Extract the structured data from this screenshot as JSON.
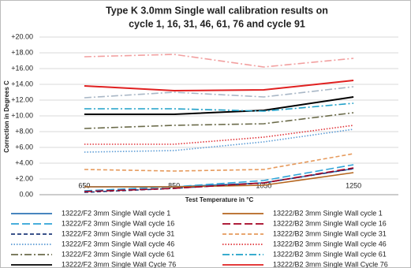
{
  "chart_data": {
    "type": "line",
    "title": [
      "Type K 3.0mm Single wall calibration results on",
      "cycle 1, 16, 31, 46, 61, 76 and cycle 91"
    ],
    "x_label": "Test Temperature in  °C",
    "y_label": "Correction in Degrees C",
    "categories": [
      "650",
      "850",
      "1050",
      "1250"
    ],
    "ylim": [
      0,
      20
    ],
    "yticks": [
      {
        "value": 0,
        "label": "0.00"
      },
      {
        "value": 2,
        "label": "+2.00"
      },
      {
        "value": 4,
        "label": "+4.00"
      },
      {
        "value": 6,
        "label": "+6.00"
      },
      {
        "value": 8,
        "label": "+8.00"
      },
      {
        "value": 10,
        "label": "+10.00"
      },
      {
        "value": 12,
        "label": "+12.00"
      },
      {
        "value": 14,
        "label": "+14.00"
      },
      {
        "value": 16,
        "label": "+16.00"
      },
      {
        "value": 18,
        "label": "+18.00"
      },
      {
        "value": 20,
        "label": "+20.00"
      }
    ],
    "grid": true,
    "series": [
      {
        "name": "13222/F2 3mm Single Wall cycle 1",
        "color": "#2e75b6",
        "dash": "solid",
        "values": [
          1.0,
          1.0,
          1.5,
          3.3
        ]
      },
      {
        "name": "13222/F2 3mm Single Wall cycle 16",
        "color": "#2fa4d8",
        "dash": "longdash",
        "values": [
          0.5,
          1.0,
          1.8,
          3.8
        ]
      },
      {
        "name": "13222/F2 3mm Single Wall cycle 31",
        "color": "#1f3a7a",
        "dash": "dashed",
        "values": [
          0.3,
          0.8,
          1.5,
          3.3
        ]
      },
      {
        "name": "13222/F2 3mm Single Wall cycle 46",
        "color": "#5b9bd5",
        "dash": "dotted",
        "values": [
          5.4,
          5.6,
          6.7,
          8.3
        ]
      },
      {
        "name": "13222/F2 3mm Single Wall cycle 61",
        "color": "#6b6b4a",
        "dash": "dashdot",
        "values": [
          8.4,
          8.8,
          9.0,
          10.4
        ]
      },
      {
        "name": "13222/F2 3mm Single Wall Cycle 76",
        "color": "#000000",
        "dash": "solid",
        "values": [
          10.2,
          10.2,
          10.7,
          12.4
        ]
      },
      {
        "name": "13222/B2 3mm Single Wall cycle 1",
        "color": "#b5651d",
        "dash": "solid",
        "values": [
          1.0,
          1.0,
          1.2,
          2.8
        ]
      },
      {
        "name": "13222/B2 3mm Single Wall cycle 16",
        "color": "#a50021",
        "dash": "longdash",
        "values": [
          0.4,
          0.8,
          1.5,
          3.4
        ]
      },
      {
        "name": "13222/B2 3mm Single Wall cycle 31",
        "color": "#e69a5c",
        "dash": "dashed",
        "values": [
          3.2,
          3.0,
          3.2,
          5.2
        ]
      },
      {
        "name": "13222/B2 3mm Single Wall cycle 46",
        "color": "#e0343a",
        "dash": "dotted",
        "values": [
          6.4,
          6.4,
          7.3,
          8.8
        ]
      },
      {
        "name": "13222/B2 3mm Single Wall cycle 61",
        "color": "#1fa0c8",
        "dash": "dashdot",
        "values": [
          10.9,
          10.9,
          10.6,
          11.6
        ]
      },
      {
        "name": "13222/B2 3mm Single Wall Cycle 76",
        "color": "#e02020",
        "dash": "solid",
        "values": [
          13.8,
          13.2,
          13.3,
          14.5
        ]
      },
      {
        "color": "#f2a0a0",
        "dash": "dashdot",
        "values": [
          17.5,
          17.8,
          16.2,
          17.3
        ]
      },
      {
        "color": "#a9b7c6",
        "dash": "dashdot",
        "values": [
          12.3,
          13.0,
          12.4,
          13.7
        ]
      }
    ]
  }
}
